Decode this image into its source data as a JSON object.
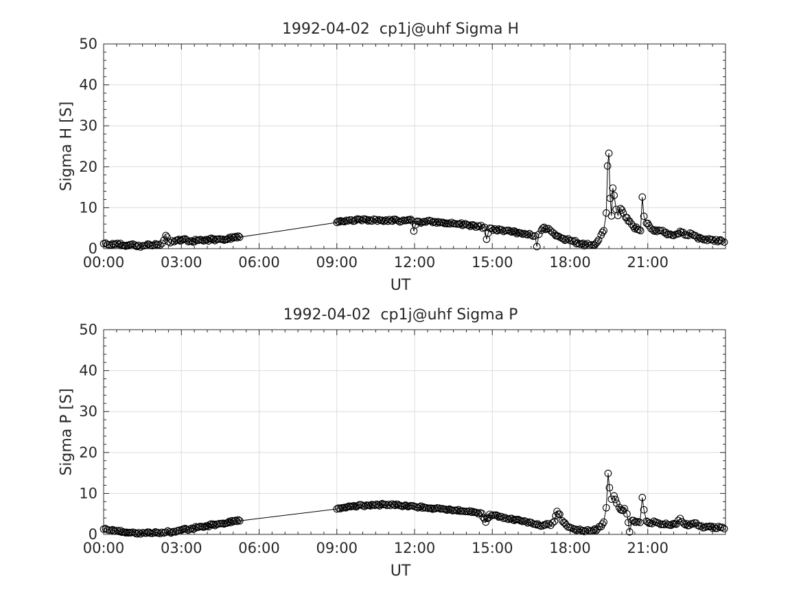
{
  "figure": {
    "background": "#ffffff"
  },
  "colors": {
    "axis": "#262626",
    "grid": "#dcdcdc",
    "line": "#000000",
    "marker": "#000000",
    "text": "#262626"
  },
  "chart_data": [
    {
      "type": "line",
      "title": "1992-04-02  cp1j@uhf Sigma H",
      "xlabel": "UT",
      "ylabel": "Sigma H [S]",
      "xlim": [
        0,
        24
      ],
      "ylim": [
        0,
        50
      ],
      "grid": true,
      "legend": "none",
      "marker": "open-circle",
      "xticks": {
        "hours": [
          0,
          3,
          6,
          9,
          12,
          15,
          18,
          21
        ],
        "labels": [
          "00:00",
          "03:00",
          "06:00",
          "09:00",
          "12:00",
          "15:00",
          "18:00",
          "21:00"
        ]
      },
      "yticks": {
        "values": [
          0,
          10,
          20,
          30,
          40,
          50
        ],
        "labels": [
          "0",
          "10",
          "20",
          "30",
          "40",
          "50"
        ]
      },
      "minor_x_step_h": 0.5,
      "minor_y_step": 2,
      "noise_amp": 0.35,
      "densify_step_h": 0.05,
      "gap_threshold_h": 1.0,
      "series": [
        {
          "name": "Sigma H",
          "points": [
            [
              0,
              1.2
            ],
            [
              0.15,
              1.0
            ],
            [
              0.3,
              0.9
            ],
            [
              0.45,
              1.1
            ],
            [
              0.6,
              1.0
            ],
            [
              0.75,
              0.8
            ],
            [
              0.9,
              0.8
            ],
            [
              1.05,
              1.0
            ],
            [
              1.2,
              0.9
            ],
            [
              1.35,
              0.8
            ],
            [
              1.5,
              0.7
            ],
            [
              1.65,
              0.8
            ],
            [
              1.8,
              0.8
            ],
            [
              1.95,
              0.9
            ],
            [
              2.1,
              1.0
            ],
            [
              2.25,
              1.3
            ],
            [
              2.4,
              3.2
            ],
            [
              2.5,
              1.7
            ],
            [
              2.65,
              1.9
            ],
            [
              2.8,
              2.0
            ],
            [
              3.0,
              2.0
            ],
            [
              3.2,
              2.1
            ],
            [
              3.4,
              1.9
            ],
            [
              3.6,
              2.0
            ],
            [
              3.8,
              2.1
            ],
            [
              4.0,
              2.2
            ],
            [
              4.2,
              2.2
            ],
            [
              4.4,
              2.3
            ],
            [
              4.6,
              2.3
            ],
            [
              4.8,
              2.4
            ],
            [
              5.0,
              2.6
            ],
            [
              5.25,
              2.8
            ],
            [
              9.0,
              6.4
            ],
            [
              9.15,
              6.8
            ],
            [
              9.3,
              6.6
            ],
            [
              9.5,
              7.0
            ],
            [
              9.7,
              6.8
            ],
            [
              9.9,
              7.1
            ],
            [
              10.1,
              7.2
            ],
            [
              10.3,
              6.8
            ],
            [
              10.5,
              7.1
            ],
            [
              10.7,
              6.9
            ],
            [
              10.9,
              7.0
            ],
            [
              11.1,
              6.8
            ],
            [
              11.3,
              7.0
            ],
            [
              11.5,
              6.7
            ],
            [
              11.7,
              6.9
            ],
            [
              11.9,
              6.8
            ],
            [
              11.97,
              4.3
            ],
            [
              12.1,
              6.7
            ],
            [
              12.3,
              6.5
            ],
            [
              12.5,
              6.8
            ],
            [
              12.7,
              6.4
            ],
            [
              12.9,
              6.6
            ],
            [
              13.1,
              6.4
            ],
            [
              13.3,
              6.2
            ],
            [
              13.5,
              6.1
            ],
            [
              13.7,
              6.0
            ],
            [
              13.9,
              5.9
            ],
            [
              14.1,
              5.7
            ],
            [
              14.3,
              5.6
            ],
            [
              14.5,
              5.4
            ],
            [
              14.7,
              5.2
            ],
            [
              14.78,
              2.3
            ],
            [
              14.9,
              5.0
            ],
            [
              15.1,
              4.8
            ],
            [
              15.3,
              4.6
            ],
            [
              15.5,
              4.4
            ],
            [
              15.7,
              4.2
            ],
            [
              15.9,
              4.0
            ],
            [
              16.1,
              3.8
            ],
            [
              16.3,
              3.5
            ],
            [
              16.5,
              3.3
            ],
            [
              16.65,
              3.1
            ],
            [
              16.72,
              0.5
            ],
            [
              16.8,
              3.5
            ],
            [
              16.9,
              4.5
            ],
            [
              17.0,
              5.2
            ],
            [
              17.1,
              4.9
            ],
            [
              17.25,
              4.4
            ],
            [
              17.4,
              3.6
            ],
            [
              17.55,
              3.0
            ],
            [
              17.7,
              2.5
            ],
            [
              17.85,
              2.2
            ],
            [
              18.0,
              2.0
            ],
            [
              18.15,
              1.7
            ],
            [
              18.3,
              1.4
            ],
            [
              18.45,
              1.1
            ],
            [
              18.6,
              1.0
            ],
            [
              18.75,
              0.8
            ],
            [
              18.9,
              0.9
            ],
            [
              19.0,
              1.3
            ],
            [
              19.1,
              2.1
            ],
            [
              19.2,
              3.3
            ],
            [
              19.3,
              4.4
            ],
            [
              19.4,
              8.7
            ],
            [
              19.45,
              20.2
            ],
            [
              19.5,
              23.3
            ],
            [
              19.55,
              12.3
            ],
            [
              19.6,
              8.0
            ],
            [
              19.65,
              14.8
            ],
            [
              19.7,
              13.0
            ],
            [
              19.78,
              9.6
            ],
            [
              19.85,
              8.1
            ],
            [
              19.95,
              9.8
            ],
            [
              20.05,
              8.7
            ],
            [
              20.15,
              7.6
            ],
            [
              20.3,
              6.7
            ],
            [
              20.45,
              5.4
            ],
            [
              20.6,
              4.7
            ],
            [
              20.72,
              4.4
            ],
            [
              20.79,
              12.6
            ],
            [
              20.85,
              7.9
            ],
            [
              20.95,
              6.2
            ],
            [
              21.05,
              5.6
            ],
            [
              21.2,
              4.6
            ],
            [
              21.35,
              4.2
            ],
            [
              21.5,
              4.4
            ],
            [
              21.65,
              3.9
            ],
            [
              21.8,
              3.5
            ],
            [
              22.0,
              3.2
            ],
            [
              22.15,
              3.6
            ],
            [
              22.3,
              4.0
            ],
            [
              22.5,
              3.3
            ],
            [
              22.7,
              3.6
            ],
            [
              22.9,
              2.8
            ],
            [
              23.1,
              2.4
            ],
            [
              23.3,
              2.0
            ],
            [
              23.5,
              2.2
            ],
            [
              23.7,
              1.7
            ],
            [
              23.85,
              1.9
            ],
            [
              23.95,
              1.6
            ]
          ]
        }
      ]
    },
    {
      "type": "line",
      "title": "1992-04-02  cp1j@uhf Sigma P",
      "xlabel": "UT",
      "ylabel": "Sigma P [S]",
      "xlim": [
        0,
        24
      ],
      "ylim": [
        0,
        50
      ],
      "grid": true,
      "legend": "none",
      "marker": "open-circle",
      "xticks": {
        "hours": [
          0,
          3,
          6,
          9,
          12,
          15,
          18,
          21
        ],
        "labels": [
          "00:00",
          "03:00",
          "06:00",
          "09:00",
          "12:00",
          "15:00",
          "18:00",
          "21:00"
        ]
      },
      "yticks": {
        "values": [
          0,
          10,
          20,
          30,
          40,
          50
        ],
        "labels": [
          "0",
          "10",
          "20",
          "30",
          "40",
          "50"
        ]
      },
      "minor_x_step_h": 0.5,
      "minor_y_step": 2,
      "noise_amp": 0.3,
      "densify_step_h": 0.05,
      "gap_threshold_h": 1.0,
      "series": [
        {
          "name": "Sigma P",
          "points": [
            [
              0,
              1.3
            ],
            [
              0.15,
              1.1
            ],
            [
              0.3,
              1.0
            ],
            [
              0.45,
              0.8
            ],
            [
              0.6,
              0.7
            ],
            [
              0.75,
              0.6
            ],
            [
              0.9,
              0.5
            ],
            [
              1.05,
              0.4
            ],
            [
              1.2,
              0.4
            ],
            [
              1.35,
              0.4
            ],
            [
              1.5,
              0.4
            ],
            [
              1.65,
              0.3
            ],
            [
              1.8,
              0.3
            ],
            [
              1.95,
              0.4
            ],
            [
              2.1,
              0.4
            ],
            [
              2.25,
              0.5
            ],
            [
              2.4,
              0.5
            ],
            [
              2.55,
              0.6
            ],
            [
              2.7,
              0.7
            ],
            [
              2.85,
              0.9
            ],
            [
              3.0,
              1.0
            ],
            [
              3.2,
              1.2
            ],
            [
              3.4,
              1.5
            ],
            [
              3.6,
              1.7
            ],
            [
              3.8,
              1.9
            ],
            [
              4.0,
              2.1
            ],
            [
              4.2,
              2.3
            ],
            [
              4.4,
              2.5
            ],
            [
              4.6,
              2.7
            ],
            [
              4.8,
              2.9
            ],
            [
              5.0,
              3.1
            ],
            [
              5.25,
              3.3
            ],
            [
              9.0,
              6.2
            ],
            [
              9.2,
              6.5
            ],
            [
              9.4,
              6.7
            ],
            [
              9.6,
              6.9
            ],
            [
              9.8,
              7.0
            ],
            [
              10.0,
              7.0
            ],
            [
              10.2,
              7.1
            ],
            [
              10.4,
              7.2
            ],
            [
              10.6,
              7.2
            ],
            [
              10.8,
              7.3
            ],
            [
              11.0,
              7.3
            ],
            [
              11.2,
              7.2
            ],
            [
              11.4,
              7.1
            ],
            [
              11.6,
              7.0
            ],
            [
              11.8,
              6.9
            ],
            [
              12.0,
              6.8
            ],
            [
              12.2,
              6.7
            ],
            [
              12.4,
              6.5
            ],
            [
              12.6,
              6.4
            ],
            [
              12.8,
              6.3
            ],
            [
              13.0,
              6.2
            ],
            [
              13.2,
              6.1
            ],
            [
              13.4,
              6.0
            ],
            [
              13.6,
              5.9
            ],
            [
              13.8,
              5.7
            ],
            [
              14.0,
              5.6
            ],
            [
              14.2,
              5.4
            ],
            [
              14.4,
              5.3
            ],
            [
              14.6,
              5.1
            ],
            [
              14.75,
              3.0
            ],
            [
              14.9,
              4.9
            ],
            [
              15.1,
              4.7
            ],
            [
              15.3,
              4.4
            ],
            [
              15.5,
              4.1
            ],
            [
              15.7,
              3.9
            ],
            [
              15.9,
              3.6
            ],
            [
              16.1,
              3.3
            ],
            [
              16.3,
              3.1
            ],
            [
              16.5,
              2.9
            ],
            [
              16.65,
              2.5
            ],
            [
              16.8,
              2.2
            ],
            [
              16.95,
              2.1
            ],
            [
              17.1,
              2.6
            ],
            [
              17.25,
              2.2
            ],
            [
              17.4,
              3.2
            ],
            [
              17.5,
              5.6
            ],
            [
              17.6,
              4.9
            ],
            [
              17.7,
              3.3
            ],
            [
              17.85,
              2.3
            ],
            [
              18.0,
              1.7
            ],
            [
              18.15,
              1.3
            ],
            [
              18.3,
              1.1
            ],
            [
              18.45,
              0.9
            ],
            [
              18.6,
              0.8
            ],
            [
              18.75,
              0.9
            ],
            [
              18.9,
              1.0
            ],
            [
              19.05,
              1.3
            ],
            [
              19.2,
              1.9
            ],
            [
              19.3,
              3.0
            ],
            [
              19.4,
              6.5
            ],
            [
              19.47,
              14.9
            ],
            [
              19.52,
              11.4
            ],
            [
              19.6,
              8.6
            ],
            [
              19.7,
              9.4
            ],
            [
              19.8,
              7.6
            ],
            [
              19.9,
              6.6
            ],
            [
              20.0,
              5.9
            ],
            [
              20.1,
              6.3
            ],
            [
              20.2,
              5.0
            ],
            [
              20.3,
              0.6
            ],
            [
              20.4,
              3.4
            ],
            [
              20.55,
              3.0
            ],
            [
              20.7,
              2.9
            ],
            [
              20.79,
              9.0
            ],
            [
              20.85,
              6.0
            ],
            [
              20.95,
              3.2
            ],
            [
              21.1,
              2.8
            ],
            [
              21.3,
              3.0
            ],
            [
              21.5,
              2.4
            ],
            [
              21.7,
              2.7
            ],
            [
              21.9,
              2.2
            ],
            [
              22.1,
              2.5
            ],
            [
              22.25,
              3.9
            ],
            [
              22.4,
              2.6
            ],
            [
              22.6,
              2.2
            ],
            [
              22.8,
              2.8
            ],
            [
              23.0,
              2.0
            ],
            [
              23.2,
              1.7
            ],
            [
              23.4,
              2.0
            ],
            [
              23.6,
              1.5
            ],
            [
              23.8,
              1.7
            ],
            [
              23.95,
              1.4
            ]
          ]
        }
      ]
    }
  ]
}
